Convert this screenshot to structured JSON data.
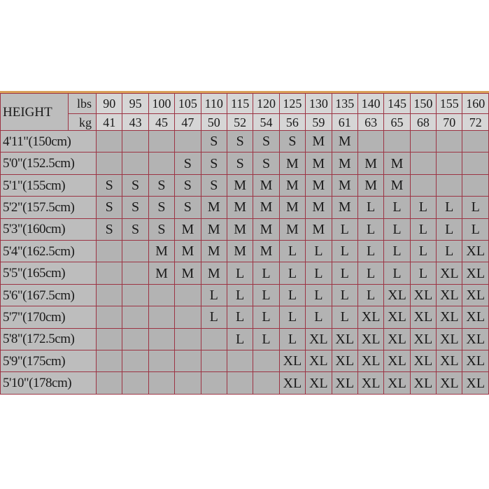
{
  "table": {
    "height_label": "HEIGHT",
    "lbs_label": "lbs",
    "kg_label": "kg",
    "lbs": [
      "90",
      "95",
      "100",
      "105",
      "110",
      "115",
      "120",
      "125",
      "130",
      "135",
      "140",
      "145",
      "150",
      "155",
      "160"
    ],
    "kg": [
      "41",
      "43",
      "45",
      "47",
      "50",
      "52",
      "54",
      "56",
      "59",
      "61",
      "63",
      "65",
      "68",
      "70",
      "72"
    ],
    "rows": [
      {
        "height": "4'11\"(150cm)",
        "sizes": [
          "",
          "",
          "",
          "",
          "S",
          "S",
          "S",
          "S",
          "M",
          "M",
          "",
          "",
          "",
          "",
          ""
        ]
      },
      {
        "height": "5'0\"(152.5cm)",
        "sizes": [
          "",
          "",
          "",
          "S",
          "S",
          "S",
          "S",
          "M",
          "M",
          "M",
          "M",
          "M",
          "",
          "",
          ""
        ]
      },
      {
        "height": "5'1\"(155cm)",
        "sizes": [
          "S",
          "S",
          "S",
          "S",
          "S",
          "M",
          "M",
          "M",
          "M",
          "M",
          "M",
          "M",
          "",
          "",
          ""
        ]
      },
      {
        "height": "5'2\"(157.5cm)",
        "sizes": [
          "S",
          "S",
          "S",
          "S",
          "M",
          "M",
          "M",
          "M",
          "M",
          "M",
          "L",
          "L",
          "L",
          "L",
          "L"
        ]
      },
      {
        "height": "5'3\"(160cm)",
        "sizes": [
          "S",
          "S",
          "S",
          "M",
          "M",
          "M",
          "M",
          "M",
          "M",
          "L",
          "L",
          "L",
          "L",
          "L",
          "L"
        ]
      },
      {
        "height": "5'4\"(162.5cm)",
        "sizes": [
          "",
          "",
          "M",
          "M",
          "M",
          "M",
          "M",
          "L",
          "L",
          "L",
          "L",
          "L",
          "L",
          "L",
          "XL"
        ]
      },
      {
        "height": "5'5\"(165cm)",
        "sizes": [
          "",
          "",
          "M",
          "M",
          "M",
          "L",
          "L",
          "L",
          "L",
          "L",
          "L",
          "L",
          "L",
          "XL",
          "XL"
        ]
      },
      {
        "height": "5'6\"(167.5cm)",
        "sizes": [
          "",
          "",
          "",
          "",
          "L",
          "L",
          "L",
          "L",
          "L",
          "L",
          "L",
          "XL",
          "XL",
          "XL",
          "XL"
        ]
      },
      {
        "height": "5'7\"(170cm)",
        "sizes": [
          "",
          "",
          "",
          "",
          "L",
          "L",
          "L",
          "L",
          "L",
          "L",
          "XL",
          "XL",
          "XL",
          "XL",
          "XL"
        ]
      },
      {
        "height": "5'8\"(172.5cm)",
        "sizes": [
          "",
          "",
          "",
          "",
          "",
          "L",
          "L",
          "L",
          "XL",
          "XL",
          "XL",
          "XL",
          "XL",
          "XL",
          "XL"
        ]
      },
      {
        "height": "5'9\"(175cm)",
        "sizes": [
          "",
          "",
          "",
          "",
          "",
          "",
          "",
          "XL",
          "XL",
          "XL",
          "XL",
          "XL",
          "XL",
          "XL",
          "XL"
        ]
      },
      {
        "height": "5'10\"(178cm)",
        "sizes": [
          "",
          "",
          "",
          "",
          "",
          "",
          "",
          "XL",
          "XL",
          "XL",
          "XL",
          "XL",
          "XL",
          "XL",
          "XL"
        ]
      }
    ]
  },
  "colors": {
    "grid": "#9c3444",
    "cell": "#b3b3b3",
    "header": "#d6d6d6",
    "border_top": "#d9a25a"
  }
}
